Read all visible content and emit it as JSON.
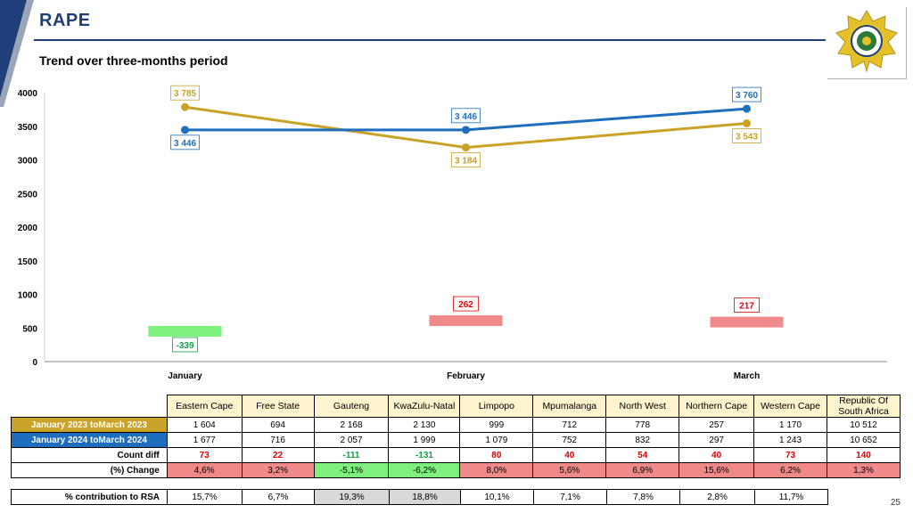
{
  "page": {
    "title": "RAPE",
    "subtitle": "Trend over three-months period",
    "page_number": "25"
  },
  "colors": {
    "series_2023": "#c9a227",
    "series_2024": "#1f6ebd",
    "increase": "#f08a8a",
    "decrease": "#7ef07e",
    "title": "#1f3e7a"
  },
  "logo": {
    "icon": "police-star-badge-icon",
    "text": "South African Police Service"
  },
  "chart_data": {
    "type": "line",
    "categories": [
      "January",
      "February",
      "March"
    ],
    "series": [
      {
        "values": [
          3785,
          3184,
          3543
        ],
        "labels": [
          "3 785",
          "3 184",
          "3 543"
        ]
      },
      {
        "values": [
          3446,
          3446,
          3760
        ],
        "labels": [
          "3 446",
          "3 446",
          "3 760"
        ]
      }
    ],
    "difference": {
      "values": [
        -339,
        262,
        217
      ],
      "labels": [
        "-339",
        "262",
        "217"
      ]
    },
    "ylim": [
      0,
      4000
    ],
    "yticks": [
      "0",
      "500",
      "1000",
      "1500",
      "2000",
      "2500",
      "3000",
      "3500",
      "4000"
    ],
    "grid": false
  },
  "table": {
    "columns": [
      "Eastern Cape",
      "Free State",
      "Gauteng",
      "KwaZulu-Natal",
      "Limpopo",
      "Mpumalanga",
      "North West",
      "Northern Cape",
      "Western Cape",
      "Republic Of South Africa"
    ],
    "rows": [
      {
        "label": "January 2023 toMarch 2023",
        "values": [
          "1 604",
          "694",
          "2 168",
          "2 130",
          "999",
          "712",
          "778",
          "257",
          "1 170",
          "10 512"
        ]
      },
      {
        "label": "January 2024 toMarch 2024",
        "values": [
          "1 677",
          "716",
          "2 057",
          "1 999",
          "1 079",
          "752",
          "832",
          "297",
          "1 243",
          "10 652"
        ]
      },
      {
        "label": "Count diff",
        "values": [
          "73",
          "22",
          "-111",
          "-131",
          "80",
          "40",
          "54",
          "40",
          "73",
          "140"
        ]
      },
      {
        "label": "(%) Change",
        "values": [
          "4,6%",
          "3,2%",
          "-5,1%",
          "-6,2%",
          "8,0%",
          "5,6%",
          "6,9%",
          "15,6%",
          "6,2%",
          "1,3%"
        ]
      }
    ],
    "contribution": {
      "label": "% contribution to RSA",
      "values": [
        "15,7%",
        "6,7%",
        "19,3%",
        "18,8%",
        "10,1%",
        "7,1%",
        "7,8%",
        "2,8%",
        "11,7%"
      ]
    }
  }
}
